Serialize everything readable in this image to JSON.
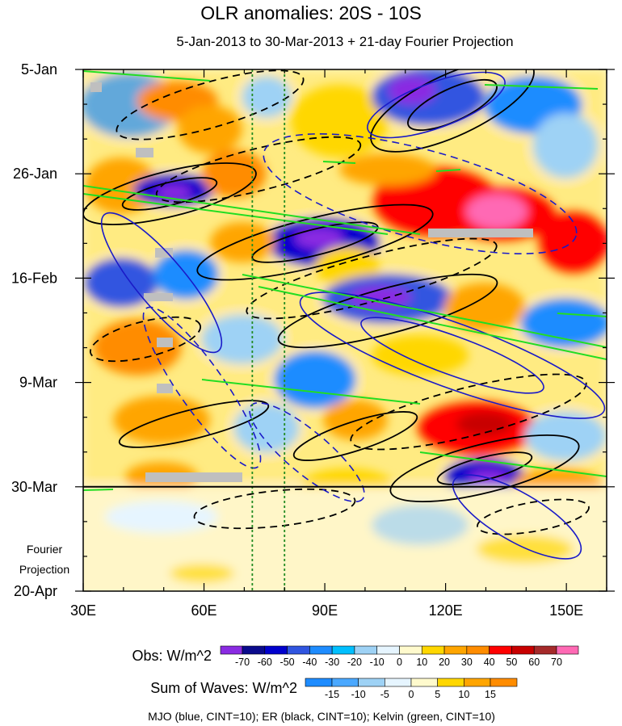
{
  "chart_data": {
    "type": "heatmap",
    "title": "OLR anomalies: 20S - 10S",
    "subtitle": "5-Jan-2013 to 30-Mar-2013 + 21-day Fourier Projection",
    "x_axis": {
      "ticks": [
        30,
        60,
        90,
        120,
        150
      ],
      "tick_labels": [
        "30E",
        "60E",
        "90E",
        "120E",
        "150E"
      ],
      "range": [
        30,
        160
      ]
    },
    "y_axis": {
      "ticks": [
        "2013-01-05",
        "2013-01-26",
        "2013-02-16",
        "2013-03-09",
        "2013-03-30",
        "2013-04-20"
      ],
      "tick_labels": [
        "5-Jan",
        "26-Jan",
        "16-Feb",
        "9-Mar",
        "30-Mar",
        "20-Apr"
      ],
      "range": [
        "2013-01-05",
        "2013-04-20"
      ],
      "reversed": true
    },
    "projection_label_line1": "Fourier",
    "projection_label_line2": "Projection",
    "projection_start": "2013-03-30",
    "reference_lines_longitude": [
      72,
      80
    ],
    "obs_colorbar": {
      "label": "Obs: W/m^2",
      "levels": [
        -70,
        -60,
        -50,
        -40,
        -30,
        -20,
        -10,
        0,
        10,
        20,
        30,
        40,
        50,
        60,
        70
      ],
      "colors": [
        "#8a2be2",
        "#0a0a8c",
        "#0000cd",
        "#3055e0",
        "#1e8cff",
        "#00bfff",
        "#9ed2f5",
        "#e6f5ff",
        "#fffacd",
        "#ffd700",
        "#ffa500",
        "#ff8c00",
        "#ff0000",
        "#c80000",
        "#a52a2a",
        "#ff69b4"
      ]
    },
    "waves_colorbar": {
      "label": "Sum of Waves: W/m^2",
      "levels": [
        -15,
        -10,
        -5,
        0,
        5,
        10,
        15
      ],
      "colors": [
        "#1e8cff",
        "#4aa8ff",
        "#9ed2f5",
        "#e6f5ff",
        "#fffacd",
        "#ffd700",
        "#ffa500",
        "#ff8c00"
      ]
    },
    "caption": "MJO (blue, CINT=10); ER (black, CINT=10); Kelvin (green, CINT=10)",
    "wave_colors": {
      "mjo": "#1a1ac8",
      "er": "#000000",
      "kelvin": "#22dd22"
    }
  }
}
